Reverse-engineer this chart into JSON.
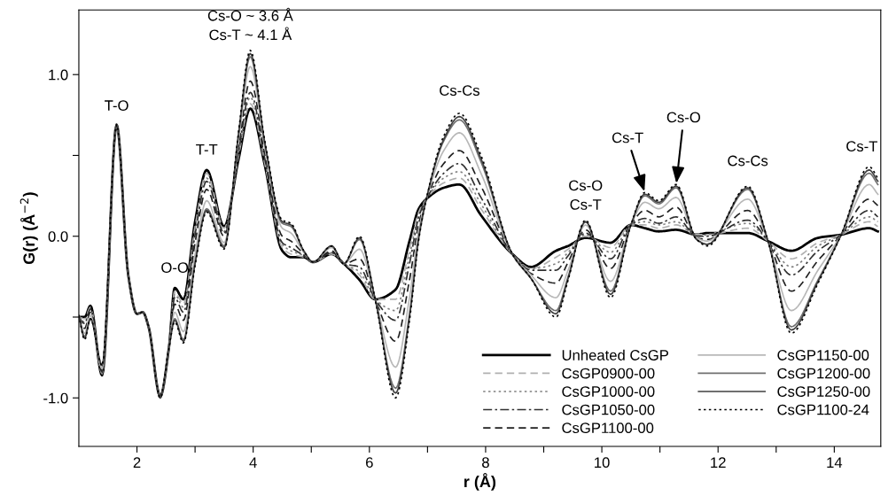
{
  "chart_data": {
    "type": "line",
    "xlabel": "r (Å)",
    "ylabel": "G(r) (Å$^{−2}$)",
    "xlim": [
      1,
      14.8
    ],
    "ylim": [
      -1.3,
      1.4
    ],
    "xticks": [
      2,
      {
        "value": 3,
        "label": null
      },
      4,
      {
        "value": 5,
        "label": null
      },
      6,
      {
        "value": 7,
        "label": null
      },
      8,
      {
        "value": 9,
        "label": null
      },
      10,
      {
        "value": 11,
        "label": null
      },
      12,
      {
        "value": 13,
        "label": null
      },
      14
    ],
    "yticks": [
      {
        "value": -1.0,
        "label": "-1.0"
      },
      {
        "value": -0.5,
        "label": null
      },
      {
        "value": 0,
        "label": "0.0"
      },
      {
        "value": 0.5,
        "label": null
      },
      {
        "value": 1.0,
        "label": "1.0"
      }
    ],
    "grid": false,
    "legend": "bottom right",
    "marker": "none",
    "x": [
      1.0,
      1.1,
      1.2,
      1.4,
      1.65,
      1.85,
      2.0,
      2.1,
      2.2,
      2.4,
      2.55,
      2.65,
      2.8,
      3.0,
      3.2,
      3.5,
      3.75,
      3.95,
      4.2,
      4.5,
      4.65,
      4.87,
      5.03,
      5.35,
      5.56,
      5.83,
      6.1,
      6.45,
      6.69,
      6.85,
      6.98,
      7.28,
      7.55,
      7.92,
      8.46,
      8.78,
      9.21,
      9.42,
      9.72,
      10.15,
      10.5,
      10.74,
      10.98,
      11.28,
      11.63,
      11.82,
      12.51,
      12.86,
      13.26,
      13.72,
      14.12,
      14.6,
      14.75
    ],
    "series": [
      {
        "name": "Unheated CsGP",
        "color": "#000000",
        "line_style": "solid",
        "values": [
          -0.5,
          -0.5,
          -0.43,
          -0.86,
          0.69,
          -0.24,
          -0.48,
          -0.47,
          -0.56,
          -0.99,
          -0.69,
          -0.32,
          -0.39,
          0.09,
          0.41,
          0.06,
          0.48,
          0.79,
          0.44,
          -0.09,
          -0.13,
          -0.13,
          -0.16,
          -0.11,
          -0.17,
          -0.27,
          -0.39,
          -0.33,
          -0.03,
          0.17,
          0.23,
          0.3,
          0.32,
          0.13,
          -0.11,
          -0.19,
          -0.09,
          -0.06,
          -0.01,
          -0.04,
          0.07,
          0.05,
          0.03,
          0.04,
          0.01,
          0.02,
          0.02,
          -0.03,
          -0.09,
          -0.01,
          0.01,
          0.05,
          0.03
        ]
      },
      {
        "name": "CsGP0900-00",
        "color": "#b0b0b0",
        "line_style": "dashed",
        "values": [
          -0.5,
          -0.51,
          -0.44,
          -0.85,
          0.69,
          -0.24,
          -0.48,
          -0.47,
          -0.56,
          -0.99,
          -0.69,
          -0.34,
          -0.42,
          0.06,
          0.39,
          0.05,
          0.5,
          0.82,
          0.45,
          -0.07,
          -0.11,
          -0.13,
          -0.16,
          -0.11,
          -0.17,
          -0.24,
          -0.39,
          -0.39,
          -0.08,
          0.15,
          0.23,
          0.33,
          0.36,
          0.17,
          -0.11,
          -0.2,
          -0.13,
          -0.08,
          0.0,
          -0.07,
          0.07,
          0.07,
          0.05,
          0.07,
          0.01,
          0.01,
          0.05,
          -0.03,
          -0.14,
          -0.04,
          0.01,
          0.09,
          0.06
        ]
      },
      {
        "name": "CsGP1000-00",
        "color": "#808080",
        "line_style": "dotted",
        "values": [
          -0.5,
          -0.53,
          -0.45,
          -0.85,
          0.69,
          -0.24,
          -0.48,
          -0.47,
          -0.56,
          -0.99,
          -0.69,
          -0.36,
          -0.44,
          0.04,
          0.36,
          0.03,
          0.51,
          0.86,
          0.47,
          -0.05,
          -0.09,
          -0.12,
          -0.16,
          -0.1,
          -0.17,
          -0.22,
          -0.39,
          -0.46,
          -0.12,
          0.13,
          0.23,
          0.36,
          0.4,
          0.2,
          -0.11,
          -0.2,
          -0.17,
          -0.1,
          0.01,
          -0.1,
          0.07,
          0.09,
          0.07,
          0.09,
          0.0,
          0.01,
          0.08,
          -0.03,
          -0.19,
          -0.06,
          0.01,
          0.12,
          0.09
        ]
      },
      {
        "name": "CsGP1050-00",
        "color": "#303030",
        "line_style": "dashdot",
        "values": [
          -0.5,
          -0.54,
          -0.45,
          -0.84,
          0.69,
          -0.24,
          -0.48,
          -0.47,
          -0.56,
          -0.99,
          -0.69,
          -0.38,
          -0.47,
          0.01,
          0.34,
          0.02,
          0.53,
          0.89,
          0.48,
          -0.04,
          -0.07,
          -0.12,
          -0.16,
          -0.1,
          -0.17,
          -0.19,
          -0.39,
          -0.52,
          -0.17,
          0.12,
          0.23,
          0.39,
          0.45,
          0.24,
          -0.11,
          -0.21,
          -0.21,
          -0.12,
          0.02,
          -0.14,
          0.07,
          0.11,
          0.08,
          0.12,
          0.0,
          0.0,
          0.1,
          -0.03,
          -0.24,
          -0.09,
          0.01,
          0.16,
          0.12
        ]
      },
      {
        "name": "CsGP1100-00",
        "color": "#202020",
        "line_style": "dashed",
        "values": [
          -0.5,
          -0.57,
          -0.47,
          -0.83,
          0.69,
          -0.24,
          -0.48,
          -0.47,
          -0.56,
          -0.99,
          -0.69,
          -0.42,
          -0.52,
          -0.04,
          0.29,
          0.0,
          0.56,
          0.96,
          0.51,
          0.0,
          -0.03,
          -0.11,
          -0.16,
          -0.09,
          -0.17,
          -0.14,
          -0.39,
          -0.65,
          -0.27,
          0.08,
          0.23,
          0.45,
          0.53,
          0.31,
          -0.11,
          -0.23,
          -0.29,
          -0.16,
          0.04,
          -0.2,
          0.07,
          0.16,
          0.12,
          0.18,
          -0.01,
          -0.02,
          0.16,
          -0.03,
          -0.34,
          -0.15,
          0.01,
          0.23,
          0.19
        ]
      },
      {
        "name": "CsGP1150-00",
        "color": "#b8b8b8",
        "line_style": "solid",
        "values": [
          -0.49,
          -0.6,
          -0.49,
          -0.82,
          0.69,
          -0.24,
          -0.48,
          -0.47,
          -0.56,
          -1.0,
          -0.69,
          -0.47,
          -0.59,
          -0.11,
          0.22,
          -0.04,
          0.6,
          1.05,
          0.55,
          0.05,
          0.02,
          -0.1,
          -0.16,
          -0.07,
          -0.17,
          -0.08,
          -0.39,
          -0.81,
          -0.38,
          0.04,
          0.23,
          0.53,
          0.64,
          0.39,
          -0.11,
          -0.24,
          -0.38,
          -0.21,
          0.07,
          -0.28,
          0.07,
          0.21,
          0.17,
          0.24,
          -0.01,
          -0.03,
          0.23,
          -0.03,
          -0.46,
          -0.21,
          0.01,
          0.32,
          0.26
        ]
      },
      {
        "name": "CsGP1200-00",
        "color": "#707070",
        "line_style": "solid",
        "values": [
          -0.49,
          -0.62,
          -0.51,
          -0.8,
          0.69,
          -0.24,
          -0.48,
          -0.47,
          -0.56,
          -1.0,
          -0.69,
          -0.51,
          -0.64,
          -0.16,
          0.17,
          -0.06,
          0.63,
          1.11,
          0.57,
          0.08,
          0.06,
          -0.09,
          -0.16,
          -0.06,
          -0.17,
          -0.02,
          -0.39,
          -0.94,
          -0.48,
          0.0,
          0.23,
          0.59,
          0.72,
          0.46,
          -0.11,
          -0.26,
          -0.46,
          -0.25,
          0.09,
          -0.34,
          0.07,
          0.25,
          0.2,
          0.3,
          -0.02,
          -0.05,
          0.29,
          -0.03,
          -0.56,
          -0.27,
          0.01,
          0.39,
          0.32
        ]
      },
      {
        "name": "CsGP1250-00",
        "color": "#404040",
        "line_style": "solid",
        "values": [
          -0.49,
          -0.63,
          -0.51,
          -0.8,
          0.69,
          -0.24,
          -0.48,
          -0.47,
          -0.56,
          -1.0,
          -0.69,
          -0.52,
          -0.65,
          -0.17,
          0.16,
          -0.07,
          0.64,
          1.13,
          0.58,
          0.09,
          0.07,
          -0.09,
          -0.16,
          -0.06,
          -0.17,
          -0.01,
          -0.39,
          -0.97,
          -0.5,
          -0.01,
          0.23,
          0.6,
          0.74,
          0.48,
          -0.11,
          -0.26,
          -0.48,
          -0.26,
          0.09,
          -0.36,
          0.07,
          0.26,
          0.21,
          0.31,
          -0.02,
          -0.05,
          0.3,
          -0.03,
          -0.58,
          -0.28,
          0.01,
          0.41,
          0.34
        ]
      },
      {
        "name": "CsGP1100-24",
        "color": "#000000",
        "line_style": "dotted",
        "values": [
          -0.49,
          -0.64,
          -0.51,
          -0.8,
          0.69,
          -0.24,
          -0.48,
          -0.47,
          -0.56,
          -1.0,
          -0.69,
          -0.53,
          -0.66,
          -0.18,
          0.15,
          -0.08,
          0.65,
          1.15,
          0.59,
          0.1,
          0.08,
          -0.09,
          -0.16,
          -0.06,
          -0.17,
          0.0,
          -0.39,
          -1.0,
          -0.52,
          -0.02,
          0.23,
          0.62,
          0.76,
          0.5,
          -0.11,
          -0.26,
          -0.5,
          -0.27,
          0.1,
          -0.38,
          0.07,
          0.27,
          0.22,
          0.32,
          -0.02,
          -0.06,
          0.31,
          -0.03,
          -0.6,
          -0.29,
          0.01,
          0.43,
          0.36
        ]
      }
    ],
    "annotations": [
      {
        "text": "T-O",
        "x": 1.65,
        "y": 0.69
      },
      {
        "text": "O-O",
        "x": 2.65,
        "y": -0.32
      },
      {
        "text": "T-T",
        "x": 3.2,
        "y": 0.41
      },
      {
        "text": "Cs-O ~ 3.6 Å\nCs-T ~ 4.1 Å",
        "x": 3.95,
        "y": 1.15
      },
      {
        "text": "Cs-Cs",
        "x": 7.55,
        "y": 0.76
      },
      {
        "text": "Cs-O\nCs-T",
        "x": 9.72,
        "y": 0.1
      },
      {
        "text": "Cs-T",
        "x": 10.74,
        "y": 0.27
      },
      {
        "text": "Cs-O",
        "x": 11.28,
        "y": 0.32
      },
      {
        "text": "Cs-Cs",
        "x": 12.51,
        "y": 0.31
      },
      {
        "text": "Cs-T",
        "x": 14.6,
        "y": 0.43
      }
    ]
  }
}
